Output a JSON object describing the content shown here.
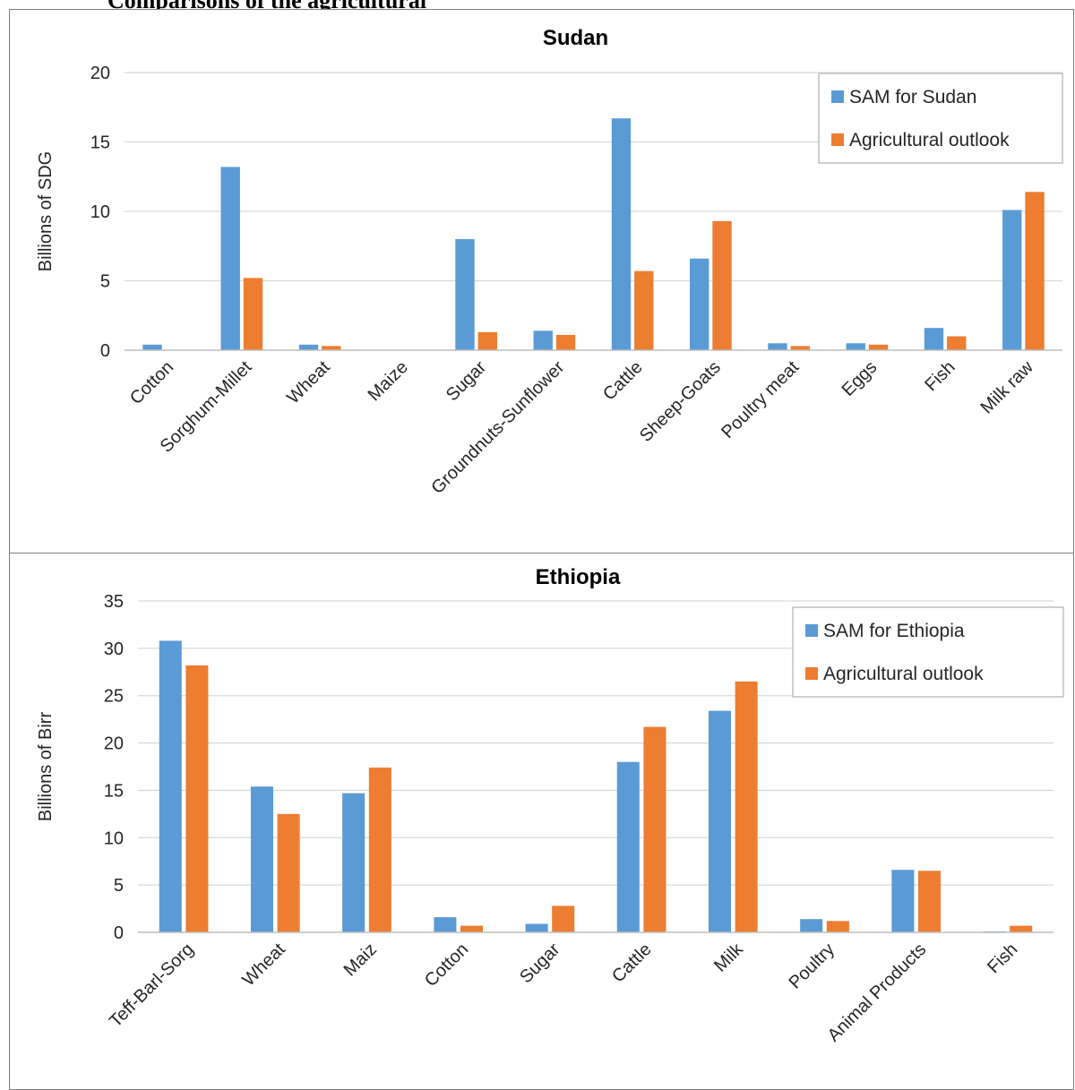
{
  "page_heading": "Comparisons of the agricultural",
  "colors": {
    "series1": "#5b9bd5",
    "series2": "#ed7d31",
    "grid": "#d9d9d9",
    "axis": "#bfbfbf"
  },
  "chart_data": [
    {
      "type": "bar",
      "title": "Sudan",
      "xlabel": "",
      "ylabel": "Billions of SDG",
      "ylim": [
        0,
        20
      ],
      "yticks": [
        0,
        5,
        10,
        15,
        20
      ],
      "grid": true,
      "legend_position": "top-right",
      "categories": [
        "Cotton",
        "Sorghum-Millet",
        "Wheat",
        "Maize",
        "Sugar",
        "Groundnuts-Sunflower",
        "Cattle",
        "Sheep-Goats",
        "Poultry meat",
        "Eggs",
        "Fish",
        "Milk raw"
      ],
      "series": [
        {
          "name": "SAM for Sudan",
          "values": [
            0.4,
            13.2,
            0.4,
            0,
            8.0,
            1.4,
            16.7,
            6.6,
            0.5,
            0.5,
            1.6,
            10.1
          ]
        },
        {
          "name": "Agricultural outlook",
          "values": [
            0,
            5.2,
            0.3,
            0,
            1.3,
            1.1,
            5.7,
            9.3,
            0.3,
            0.4,
            1.0,
            11.4
          ]
        }
      ]
    },
    {
      "type": "bar",
      "title": "Ethiopia",
      "xlabel": "",
      "ylabel": "Billions of Birr",
      "ylim": [
        0,
        35
      ],
      "yticks": [
        0,
        5,
        10,
        15,
        20,
        25,
        30,
        35
      ],
      "grid": true,
      "legend_position": "top-right",
      "categories": [
        "Teff-Barl-Sorg",
        "Wheat",
        "Maiz",
        "Cotton",
        "Sugar",
        "Cattle",
        "Milk",
        "Poultry",
        "Animal Products",
        "Fish"
      ],
      "series": [
        {
          "name": "SAM for Ethiopia",
          "values": [
            30.8,
            15.4,
            14.7,
            1.6,
            0.9,
            18.0,
            23.4,
            1.4,
            6.6,
            0.1
          ]
        },
        {
          "name": "Agricultural outlook",
          "values": [
            28.2,
            12.5,
            17.4,
            0.7,
            2.8,
            21.7,
            26.5,
            1.2,
            6.5,
            0.7
          ]
        }
      ]
    }
  ]
}
